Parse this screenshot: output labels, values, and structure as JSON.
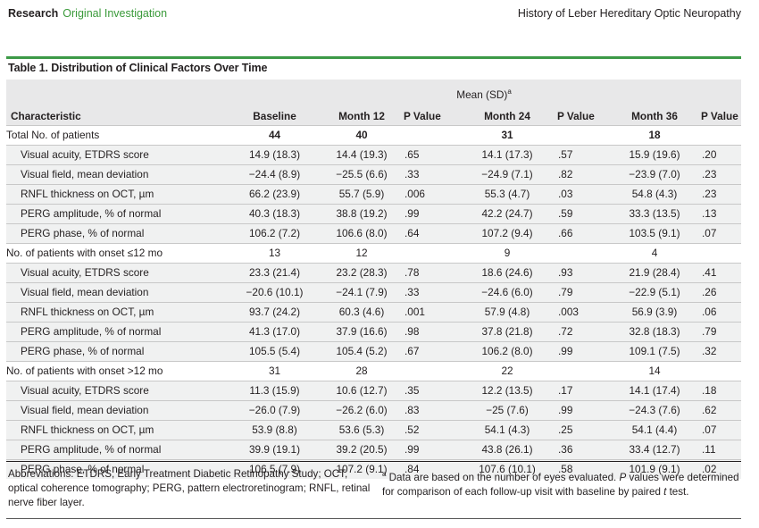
{
  "header": {
    "section": "Research",
    "category": "Original Investigation",
    "running_title": "History of Leber Hereditary Optic Neuropathy"
  },
  "table": {
    "caption": "Table 1. Distribution of Clinical Factors Over Time",
    "spanner": "Mean (SD)",
    "spanner_note": "a",
    "columns": [
      "Characteristic",
      "Baseline",
      "Month 12",
      "P Value",
      "Month 24",
      "P Value",
      "Month 36",
      "P Value"
    ],
    "rows": [
      {
        "type": "group",
        "bold": true,
        "cells": [
          "Total No. of patients",
          "44",
          "40",
          "",
          "31",
          "",
          "18",
          ""
        ]
      },
      {
        "type": "sub",
        "cells": [
          "Visual acuity, ETDRS score",
          "14.9 (18.3)",
          "14.4 (19.3)",
          ".65",
          "14.1 (17.3)",
          ".57",
          "15.9 (19.6)",
          ".20"
        ]
      },
      {
        "type": "sub",
        "cells": [
          "Visual field, mean deviation",
          "−24.4 (8.9)",
          "−25.5 (6.6)",
          ".33",
          "−24.9 (7.1)",
          ".82",
          "−23.9 (7.0)",
          ".23"
        ]
      },
      {
        "type": "sub",
        "cells": [
          "RNFL thickness on OCT, µm",
          "66.2 (23.9)",
          "55.7 (5.9)",
          ".006",
          "55.3 (4.7)",
          ".03",
          "54.8 (4.3)",
          ".23"
        ]
      },
      {
        "type": "sub",
        "cells": [
          "PERG amplitude, % of normal",
          "40.3 (18.3)",
          "38.8 (19.2)",
          ".99",
          "42.2 (24.7)",
          ".59",
          "33.3 (13.5)",
          ".13"
        ]
      },
      {
        "type": "sub",
        "cells": [
          "PERG phase, % of normal",
          "106.2 (7.2)",
          "106.6 (8.0)",
          ".64",
          "107.2 (9.4)",
          ".66",
          "103.5 (9.1)",
          ".07"
        ]
      },
      {
        "type": "group",
        "bold": false,
        "cells": [
          "No. of patients with onset ≤12 mo",
          "13",
          "12",
          "",
          "9",
          "",
          "4",
          ""
        ]
      },
      {
        "type": "sub",
        "cells": [
          "Visual acuity, ETDRS score",
          "23.3 (21.4)",
          "23.2 (28.3)",
          ".78",
          "18.6 (24.6)",
          ".93",
          "21.9 (28.4)",
          ".41"
        ]
      },
      {
        "type": "sub",
        "cells": [
          "Visual field, mean deviation",
          "−20.6 (10.1)",
          "−24.1 (7.9)",
          ".33",
          "−24.6 (6.0)",
          ".79",
          "−22.9 (5.1)",
          ".26"
        ]
      },
      {
        "type": "sub",
        "cells": [
          "RNFL thickness on OCT, µm",
          "93.7 (24.2)",
          "60.3 (4.6)",
          ".001",
          "57.9 (4.8)",
          ".003",
          "56.9 (3.9)",
          ".06"
        ]
      },
      {
        "type": "sub",
        "cells": [
          "PERG amplitude, % of normal",
          "41.3 (17.0)",
          "37.9 (16.6)",
          ".98",
          "37.8 (21.8)",
          ".72",
          "32.8 (18.3)",
          ".79"
        ]
      },
      {
        "type": "sub",
        "cells": [
          "PERG phase, % of normal",
          "105.5 (5.4)",
          "105.4 (5.2)",
          ".67",
          "106.2 (8.0)",
          ".99",
          "109.1 (7.5)",
          ".32"
        ]
      },
      {
        "type": "group",
        "bold": false,
        "cells": [
          "No. of patients with onset >12 mo",
          "31",
          "28",
          "",
          "22",
          "",
          "14",
          ""
        ]
      },
      {
        "type": "sub",
        "cells": [
          "Visual acuity, ETDRS score",
          "11.3 (15.9)",
          "10.6 (12.7)",
          ".35",
          "12.2 (13.5)",
          ".17",
          "14.1 (17.4)",
          ".18"
        ]
      },
      {
        "type": "sub",
        "cells": [
          "Visual field, mean deviation",
          "−26.0 (7.9)",
          "−26.2 (6.0)",
          ".83",
          "−25 (7.6)",
          ".99",
          "−24.3 (7.6)",
          ".62"
        ]
      },
      {
        "type": "sub",
        "cells": [
          "RNFL thickness on OCT, µm",
          "53.9 (8.8)",
          "53.6 (5.3)",
          ".52",
          "54.1 (4.3)",
          ".25",
          "54.1 (4.4)",
          ".07"
        ]
      },
      {
        "type": "sub",
        "cells": [
          "PERG amplitude, % of normal",
          "39.9 (19.1)",
          "39.2 (20.5)",
          ".99",
          "43.8 (26.1)",
          ".36",
          "33.4 (12.7)",
          ".11"
        ]
      },
      {
        "type": "sub",
        "cells": [
          "PERG phase, % of normal",
          "106.5 (7.9)",
          "107.2 (9.1)",
          ".84",
          "107.6 (10.1)",
          ".58",
          "101.9 (9.1)",
          ".02"
        ]
      }
    ]
  },
  "footnotes": {
    "abbreviations": "Abbreviations: ETDRS, Early Treatment Diabetic Retinopathy Study; OCT, optical coherence tomography; PERG, pattern electroretinogram; RNFL, retinal nerve fiber layer.",
    "note_marker": "a",
    "note_part1": " Data are based on the number of eyes evaluated. ",
    "note_italic1": "P",
    "note_part2": " values were determined for comparison of each follow-up visit with baseline by paired ",
    "note_italic2": "t",
    "note_part3": " test."
  }
}
